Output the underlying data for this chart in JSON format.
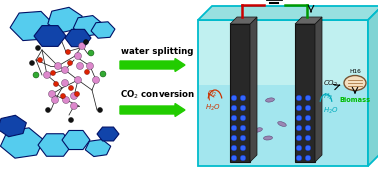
{
  "bg_color": "#ffffff",
  "arrow_color": "#22cc00",
  "label1": "water splitting",
  "label2": "CO$_2$ conversion",
  "tank_fill": "#c0f0f0",
  "tank_edge": "#00bbcc",
  "water_fill": "#90e0ee",
  "electrode_dark": "#282828",
  "electrode_mid": "#484848",
  "wire_red": "#cc0000",
  "wire_green": "#009900",
  "o2_color": "#cc3300",
  "h2o_left_color": "#cc3300",
  "co2_color": "#111111",
  "h2_color": "#00aabb",
  "h2o_right_color": "#00aabb",
  "biomass_color": "#00bb00",
  "bacteria_color": "#9977aa",
  "cyan_poly": "#55ccee",
  "blue_poly": "#1144aa",
  "dark_poly_edge": "#001166",
  "pink_atom": "#dd88cc",
  "red_atom": "#dd2200",
  "black_atom": "#111111",
  "green_atom": "#33aa33",
  "microbe_fill": "#f5dfc0",
  "microbe_edge": "#775533"
}
